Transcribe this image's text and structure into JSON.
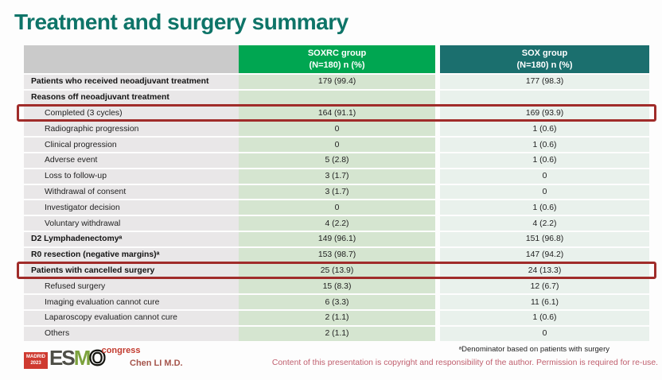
{
  "slide": {
    "title": "Treatment and surgery summary"
  },
  "table": {
    "header": {
      "soxrc_line1": "SOXRC group",
      "soxrc_line2": "(N=180)  n (%)",
      "sox_line1": "SOX group",
      "sox_line2": "(N=180)  n (%)"
    },
    "rows": [
      {
        "label": "Patients who received neoadjuvant treatment",
        "soxrc": "179 (99.4)",
        "sox": "177 (98.3)",
        "bold": true,
        "indent": false,
        "highlight": false
      },
      {
        "label": "Reasons off neoadjuvant treatment",
        "soxrc": "",
        "sox": "",
        "bold": true,
        "indent": false,
        "highlight": false
      },
      {
        "label": "Completed (3 cycles)",
        "soxrc": "164 (91.1)",
        "sox": "169 (93.9)",
        "bold": false,
        "indent": true,
        "highlight": true
      },
      {
        "label": "Radiographic progression",
        "soxrc": "0",
        "sox": "1 (0.6)",
        "bold": false,
        "indent": true,
        "highlight": false
      },
      {
        "label": "Clinical progression",
        "soxrc": "0",
        "sox": "1 (0.6)",
        "bold": false,
        "indent": true,
        "highlight": false
      },
      {
        "label": "Adverse event",
        "soxrc": "5 (2.8)",
        "sox": "1 (0.6)",
        "bold": false,
        "indent": true,
        "highlight": false
      },
      {
        "label": "Loss to follow-up",
        "soxrc": "3 (1.7)",
        "sox": "0",
        "bold": false,
        "indent": true,
        "highlight": false
      },
      {
        "label": "Withdrawal of consent",
        "soxrc": "3 (1.7)",
        "sox": "0",
        "bold": false,
        "indent": true,
        "highlight": false
      },
      {
        "label": "Investigator decision",
        "soxrc": "0",
        "sox": "1 (0.6)",
        "bold": false,
        "indent": true,
        "highlight": false
      },
      {
        "label": "Voluntary withdrawal",
        "soxrc": "4 (2.2)",
        "sox": "4 (2.2)",
        "bold": false,
        "indent": true,
        "highlight": false
      },
      {
        "label": "D2 Lymphadenectomyᵃ",
        "soxrc": "149 (96.1)",
        "sox": "151 (96.8)",
        "bold": true,
        "indent": false,
        "highlight": false
      },
      {
        "label": "R0 resection (negative margins)ᵃ",
        "soxrc": "153 (98.7)",
        "sox": "147 (94.2)",
        "bold": true,
        "indent": false,
        "highlight": false
      },
      {
        "label": "Patients with cancelled surgery",
        "soxrc": "25 (13.9)",
        "sox": "24 (13.3)",
        "bold": true,
        "indent": false,
        "highlight": true
      },
      {
        "label": "Refused surgery",
        "soxrc": "15 (8.3)",
        "sox": "12 (6.7)",
        "bold": false,
        "indent": true,
        "highlight": false
      },
      {
        "label": "Imaging evaluation cannot cure",
        "soxrc": "6 (3.3)",
        "sox": "11 (6.1)",
        "bold": false,
        "indent": true,
        "highlight": false
      },
      {
        "label": "Laparoscopy evaluation cannot cure",
        "soxrc": "2 (1.1)",
        "sox": "1 (0.6)",
        "bold": false,
        "indent": true,
        "highlight": false
      },
      {
        "label": "Others",
        "soxrc": "2 (1.1)",
        "sox": "0",
        "bold": false,
        "indent": true,
        "highlight": false
      }
    ]
  },
  "footnote": "ᵃDenominator based on patients with surgery",
  "footer": {
    "presenter": "Chen LI M.D.",
    "copyright": "Content of this presentation is copyright and responsibility of the author. Permission is required for re-use.",
    "logo": {
      "city": "MADRID",
      "year": "2023",
      "letters": [
        "E",
        "S",
        "M",
        "O"
      ],
      "suffix": "congress"
    }
  },
  "colors": {
    "title": "#0e7468",
    "soxrc_header": "#00a651",
    "sox_header": "#1b6f6e",
    "label_header": "#cacaca",
    "label_cell": "#e9e7e8",
    "soxrc_cell": "#d5e5d0",
    "sox_cell": "#e9f1ec",
    "highlight_border": "#a02c2a",
    "copyright_text": "#c05f6e"
  }
}
